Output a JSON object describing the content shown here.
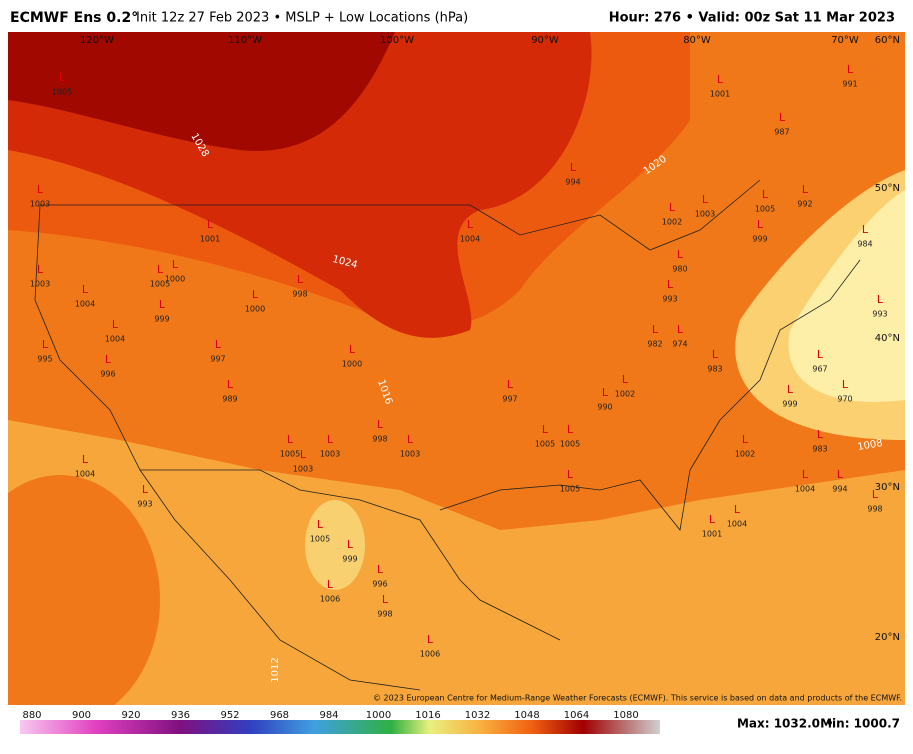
{
  "header": {
    "title": "ECMWF Ens 0.2°",
    "subtitle": "Init 12z 27 Feb 2023 • MSLP + Low Locations (hPa)",
    "valid": "Hour: 276 • Valid: 00z Sat 11 Mar 2023"
  },
  "map": {
    "lon_labels": [
      "120°W",
      "110°W",
      "100°W",
      "90°W",
      "80°W",
      "70°W"
    ],
    "lat_labels": [
      "60°N",
      "50°N",
      "40°N",
      "30°N",
      "20°N"
    ],
    "isobar_labels": [
      "1028",
      "1024",
      "1020",
      "1016",
      "1012",
      "1008"
    ],
    "low_symbol": "L",
    "lows": [
      "1005",
      "987",
      "1001",
      "991",
      "994",
      "1001",
      "1003",
      "1003",
      "1004",
      "1005",
      "1000",
      "999",
      "998",
      "1000",
      "1004",
      "1004",
      "996",
      "995",
      "997",
      "989",
      "1000",
      "997",
      "1002",
      "990",
      "974",
      "982",
      "983",
      "999",
      "967",
      "993",
      "970",
      "984",
      "992",
      "1005",
      "999",
      "1003",
      "1002",
      "980",
      "993",
      "983",
      "1002",
      "1004",
      "994",
      "998",
      "1004",
      "1001",
      "1005",
      "1005",
      "1005",
      "1003",
      "998",
      "1003",
      "1005",
      "1003",
      "1004",
      "993",
      "1005",
      "999",
      "996",
      "1006",
      "998",
      "1006"
    ],
    "copyright": "© 2023 European Centre for Medium-Range Weather Forecasts (ECMWF). This service is based on data and products of the ECMWF."
  },
  "colorbar": {
    "ticks": [
      "880",
      "900",
      "920",
      "936",
      "952",
      "968",
      "984",
      "1000",
      "1016",
      "1032",
      "1048",
      "1064",
      "1080"
    ]
  },
  "footer": {
    "max": "Max: 1032.0",
    "min": "Min: 1000.7"
  }
}
